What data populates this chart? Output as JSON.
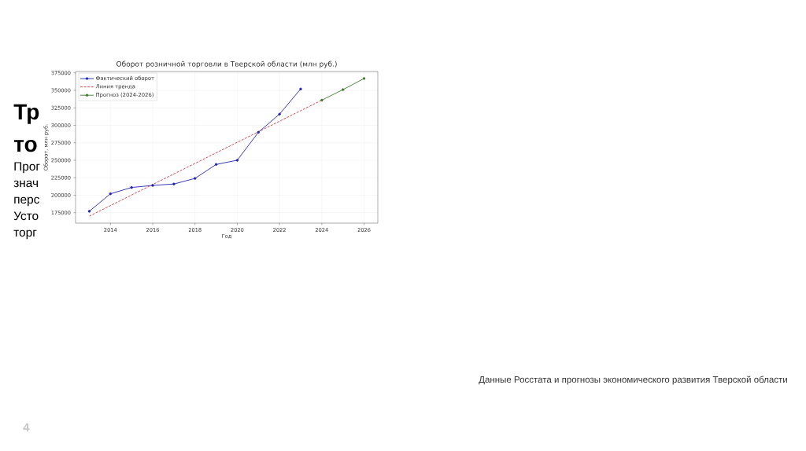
{
  "chart_data": {
    "type": "line",
    "title": "Оборот розничной торговли в Тверской области (млн руб.)",
    "xlabel": "Год",
    "ylabel": "Оборот, млн руб.",
    "series": [
      {
        "name": "Фактический оборот",
        "color": "#2323b8",
        "marker": "circle",
        "x": [
          2013,
          2014,
          2015,
          2016,
          2017,
          2018,
          2019,
          2020,
          2021,
          2022,
          2023
        ],
        "values": [
          177000,
          202000,
          211000,
          214000,
          216000,
          224000,
          244000,
          250000,
          290000,
          316000,
          352000
        ]
      },
      {
        "name": "Линия тренда",
        "color": "#d9363e",
        "marker": "none",
        "line_style": "dashed",
        "x": [
          2013,
          2024
        ],
        "values": [
          170000,
          336000
        ]
      },
      {
        "name": "Прогноз (2024-2026)",
        "color": "#3a7a2a",
        "marker": "circle",
        "x": [
          2024,
          2025,
          2026
        ],
        "values": [
          336000,
          351000,
          367000
        ]
      }
    ],
    "xlim": [
      2012.35,
      2026.65
    ],
    "ylim": [
      160000,
      377000
    ],
    "xticks": [
      2014,
      2016,
      2018,
      2020,
      2022,
      2024,
      2026
    ],
    "yticks": [
      175000,
      200000,
      225000,
      250000,
      275000,
      300000,
      325000,
      350000,
      375000
    ],
    "grid": true,
    "legend": "top left",
    "annotations": [
      "Тр",
      "то",
      "Прог",
      "знач",
      "перс",
      "Усто",
      "торг",
      "Данные Росстата и прогнозы экономического развития Тверской области",
      "4"
    ]
  }
}
